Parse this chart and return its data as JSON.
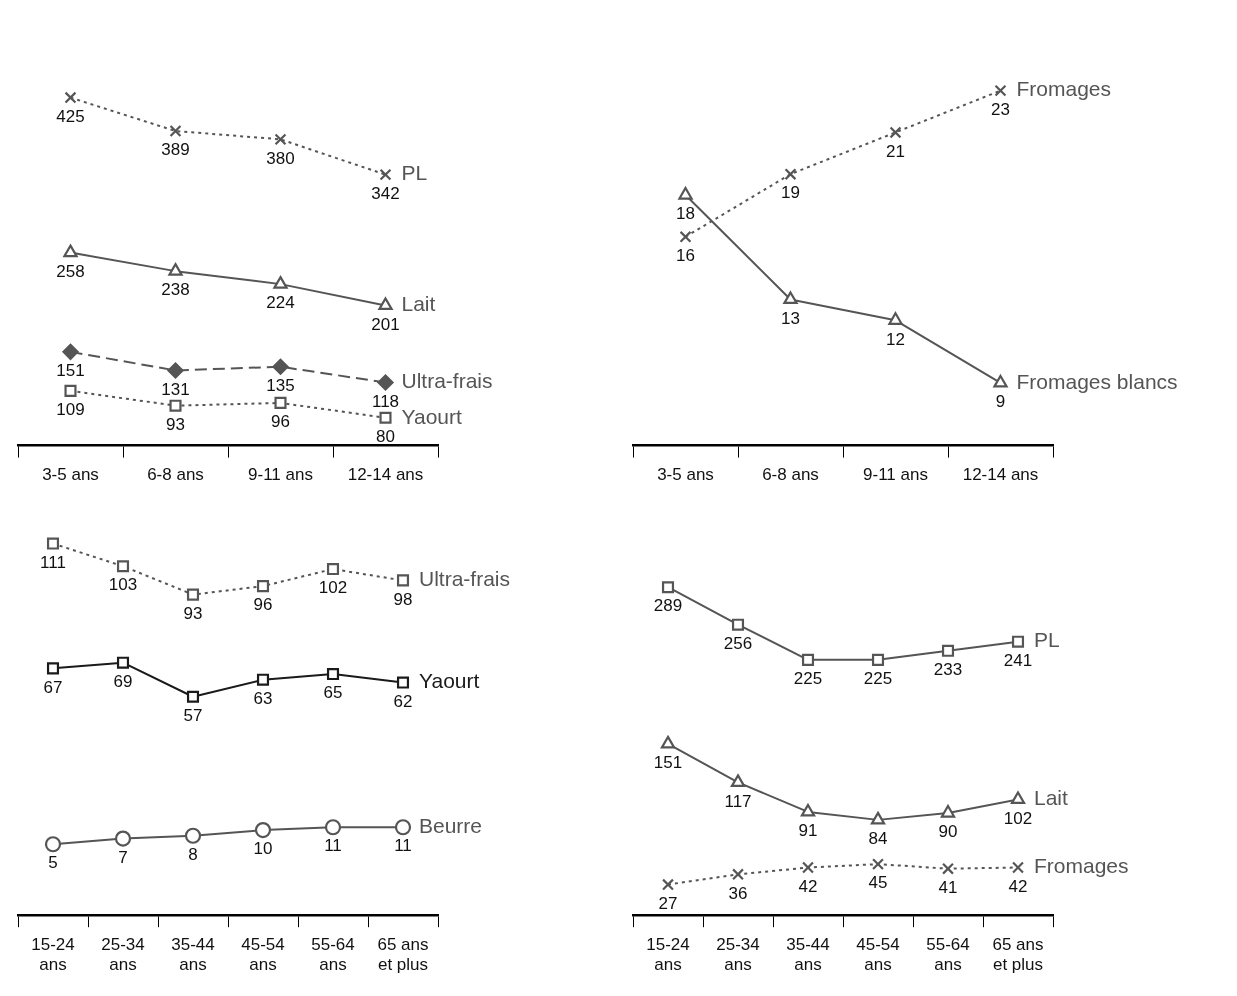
{
  "chart_data": [
    {
      "type": "line",
      "categories": [
        "3-5 ans",
        "6-8 ans",
        "9-11 ans",
        "12-14 ans"
      ],
      "legend": false,
      "grid": false,
      "tick_labels": "x",
      "data_labels": true,
      "series": [
        {
          "name": "PL",
          "color": "#555555",
          "values": [
            425,
            389,
            380,
            342
          ],
          "marker": "cross",
          "line_style": "dotted"
        },
        {
          "name": "Lait",
          "color": "#555555",
          "values": [
            258,
            238,
            224,
            201
          ],
          "marker": "triangle",
          "line_style": "solid"
        },
        {
          "name": "Ultra-frais",
          "color": "#555555",
          "values": [
            151,
            131,
            135,
            118
          ],
          "marker": "diamond",
          "line_style": "dashed"
        },
        {
          "name": "Yaourt",
          "color": "#555555",
          "values": [
            109,
            93,
            96,
            80
          ],
          "marker": "square",
          "line_style": "dotted"
        }
      ]
    },
    {
      "type": "line",
      "categories": [
        "3-5 ans",
        "6-8 ans",
        "9-11 ans",
        "12-14 ans"
      ],
      "legend": false,
      "grid": false,
      "tick_labels": "x",
      "data_labels": true,
      "series": [
        {
          "name": "Fromages",
          "color": "#555555",
          "values": [
            16,
            19,
            21,
            23
          ],
          "marker": "cross",
          "line_style": "dotted"
        },
        {
          "name": "Fromages blancs",
          "color": "#555555",
          "values": [
            18,
            13,
            12,
            9
          ],
          "marker": "triangle",
          "line_style": "solid"
        }
      ]
    },
    {
      "type": "line",
      "categories": [
        "15-24 ans",
        "25-34 ans",
        "35-44 ans",
        "45-54 ans",
        "55-64 ans",
        "65 ans et plus"
      ],
      "legend": false,
      "grid": false,
      "tick_labels": "x",
      "data_labels": true,
      "series": [
        {
          "name": "Ultra-frais",
          "color": "#555555",
          "values": [
            111,
            103,
            93,
            96,
            102,
            98
          ],
          "marker": "square",
          "line_style": "dotted"
        },
        {
          "name": "Yaourt",
          "color": "#1a1a1a",
          "values": [
            67,
            69,
            57,
            63,
            65,
            62
          ],
          "marker": "square",
          "line_style": "solid"
        },
        {
          "name": "Beurre",
          "color": "#555555",
          "values": [
            5,
            7,
            8,
            10,
            11,
            11
          ],
          "marker": "circle",
          "line_style": "solid"
        }
      ]
    },
    {
      "type": "line",
      "categories": [
        "15-24 ans",
        "25-34 ans",
        "35-44 ans",
        "45-54 ans",
        "55-64 ans",
        "65 ans et plus"
      ],
      "legend": false,
      "grid": false,
      "tick_labels": "x",
      "data_labels": true,
      "series": [
        {
          "name": "PL",
          "color": "#555555",
          "values": [
            289,
            256,
            225,
            225,
            233,
            241
          ],
          "marker": "square",
          "line_style": "solid"
        },
        {
          "name": "Lait",
          "color": "#555555",
          "values": [
            151,
            117,
            91,
            84,
            90,
            102
          ],
          "marker": "triangle",
          "line_style": "solid"
        },
        {
          "name": "Fromages",
          "color": "#555555",
          "values": [
            27,
            36,
            42,
            45,
            41,
            42
          ],
          "marker": "cross",
          "line_style": "dotted"
        }
      ]
    }
  ]
}
